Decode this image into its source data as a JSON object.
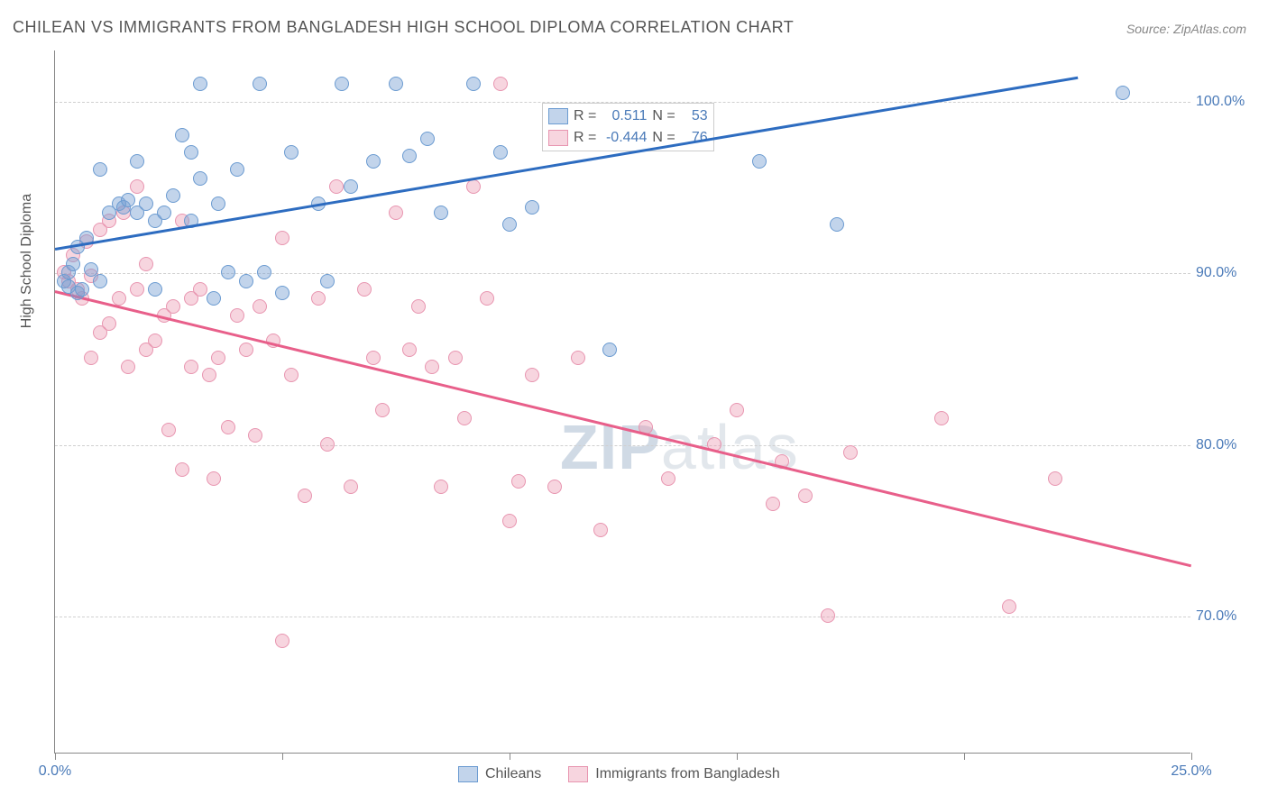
{
  "title": "CHILEAN VS IMMIGRANTS FROM BANGLADESH HIGH SCHOOL DIPLOMA CORRELATION CHART",
  "source": "Source: ZipAtlas.com",
  "y_axis_label": "High School Diploma",
  "watermark": {
    "zip": "ZIP",
    "atlas": "atlas"
  },
  "chart": {
    "type": "scatter",
    "xlim": [
      0,
      25
    ],
    "ylim": [
      62,
      103
    ],
    "x_ticks": [
      0,
      5,
      10,
      15,
      20,
      25
    ],
    "x_tick_labels": {
      "0": "0.0%",
      "25": "25.0%"
    },
    "y_ticks": [
      70,
      80,
      90,
      100
    ],
    "y_tick_labels": [
      "70.0%",
      "80.0%",
      "90.0%",
      "100.0%"
    ],
    "grid_color": "#d0d0d0",
    "background_color": "#ffffff",
    "marker_radius": 8,
    "marker_opacity": 0.55,
    "series": [
      {
        "name": "Chileans",
        "color_fill": "rgba(120,160,210,0.45)",
        "color_stroke": "#6b9bd1",
        "trend_color": "#2d6cc0",
        "trend": {
          "x1": 0,
          "y1": 91.5,
          "x2": 22.5,
          "y2": 101.5
        },
        "stats": {
          "R": "0.511",
          "N": "53"
        },
        "points": [
          [
            0.2,
            89.5
          ],
          [
            0.3,
            90.0
          ],
          [
            0.3,
            89.2
          ],
          [
            0.4,
            90.5
          ],
          [
            0.5,
            91.5
          ],
          [
            0.5,
            88.8
          ],
          [
            0.6,
            89.0
          ],
          [
            0.7,
            92.0
          ],
          [
            0.8,
            90.2
          ],
          [
            1.0,
            96.0
          ],
          [
            1.0,
            89.5
          ],
          [
            1.2,
            93.5
          ],
          [
            1.4,
            94.0
          ],
          [
            1.5,
            93.8
          ],
          [
            1.6,
            94.2
          ],
          [
            1.8,
            96.5
          ],
          [
            1.8,
            93.5
          ],
          [
            2.0,
            94.0
          ],
          [
            2.2,
            93.0
          ],
          [
            2.2,
            89.0
          ],
          [
            2.4,
            93.5
          ],
          [
            2.6,
            94.5
          ],
          [
            2.8,
            98.0
          ],
          [
            3.0,
            93.0
          ],
          [
            3.0,
            97.0
          ],
          [
            3.2,
            95.5
          ],
          [
            3.2,
            101.0
          ],
          [
            3.5,
            88.5
          ],
          [
            3.6,
            94.0
          ],
          [
            3.8,
            90.0
          ],
          [
            4.0,
            96.0
          ],
          [
            4.2,
            89.5
          ],
          [
            4.5,
            101.0
          ],
          [
            4.6,
            90.0
          ],
          [
            5.0,
            88.8
          ],
          [
            5.2,
            97.0
          ],
          [
            5.8,
            94.0
          ],
          [
            6.0,
            89.5
          ],
          [
            6.3,
            101.0
          ],
          [
            6.5,
            95.0
          ],
          [
            7.0,
            96.5
          ],
          [
            7.5,
            101.0
          ],
          [
            7.8,
            96.8
          ],
          [
            8.2,
            97.8
          ],
          [
            8.5,
            93.5
          ],
          [
            9.2,
            101.0
          ],
          [
            9.8,
            97.0
          ],
          [
            10.0,
            92.8
          ],
          [
            10.5,
            93.8
          ],
          [
            12.2,
            85.5
          ],
          [
            15.5,
            96.5
          ],
          [
            17.2,
            92.8
          ],
          [
            23.5,
            100.5
          ]
        ]
      },
      {
        "name": "Immigrants from Bangladesh",
        "color_fill": "rgba(235,150,175,0.40)",
        "color_stroke": "#e895b0",
        "trend_color": "#e85f8a",
        "trend": {
          "x1": 0,
          "y1": 89.0,
          "x2": 25,
          "y2": 73.0
        },
        "stats": {
          "R": "-0.444",
          "N": "76"
        },
        "points": [
          [
            0.2,
            90.0
          ],
          [
            0.3,
            89.5
          ],
          [
            0.4,
            91.0
          ],
          [
            0.5,
            89.0
          ],
          [
            0.6,
            88.5
          ],
          [
            0.7,
            91.8
          ],
          [
            0.8,
            89.8
          ],
          [
            0.8,
            85.0
          ],
          [
            1.0,
            92.5
          ],
          [
            1.0,
            86.5
          ],
          [
            1.2,
            93.0
          ],
          [
            1.2,
            87.0
          ],
          [
            1.4,
            88.5
          ],
          [
            1.5,
            93.5
          ],
          [
            1.6,
            84.5
          ],
          [
            1.8,
            89.0
          ],
          [
            1.8,
            95.0
          ],
          [
            2.0,
            90.5
          ],
          [
            2.0,
            85.5
          ],
          [
            2.2,
            86.0
          ],
          [
            2.4,
            87.5
          ],
          [
            2.5,
            80.8
          ],
          [
            2.6,
            88.0
          ],
          [
            2.8,
            78.5
          ],
          [
            2.8,
            93.0
          ],
          [
            3.0,
            84.5
          ],
          [
            3.0,
            88.5
          ],
          [
            3.2,
            89.0
          ],
          [
            3.4,
            84.0
          ],
          [
            3.5,
            78.0
          ],
          [
            3.6,
            85.0
          ],
          [
            3.8,
            81.0
          ],
          [
            4.0,
            87.5
          ],
          [
            4.2,
            85.5
          ],
          [
            4.4,
            80.5
          ],
          [
            4.5,
            88.0
          ],
          [
            4.8,
            86.0
          ],
          [
            5.0,
            68.5
          ],
          [
            5.0,
            92.0
          ],
          [
            5.2,
            84.0
          ],
          [
            5.5,
            77.0
          ],
          [
            5.8,
            88.5
          ],
          [
            6.0,
            80.0
          ],
          [
            6.2,
            95.0
          ],
          [
            6.5,
            77.5
          ],
          [
            6.8,
            89.0
          ],
          [
            7.0,
            85.0
          ],
          [
            7.2,
            82.0
          ],
          [
            7.5,
            93.5
          ],
          [
            7.8,
            85.5
          ],
          [
            8.0,
            88.0
          ],
          [
            8.3,
            84.5
          ],
          [
            8.5,
            77.5
          ],
          [
            8.8,
            85.0
          ],
          [
            9.0,
            81.5
          ],
          [
            9.2,
            95.0
          ],
          [
            9.5,
            88.5
          ],
          [
            9.8,
            101.0
          ],
          [
            10.0,
            75.5
          ],
          [
            10.2,
            77.8
          ],
          [
            10.5,
            84.0
          ],
          [
            11.0,
            77.5
          ],
          [
            11.5,
            85.0
          ],
          [
            12.0,
            75.0
          ],
          [
            13.0,
            81.0
          ],
          [
            13.5,
            78.0
          ],
          [
            14.5,
            80.0
          ],
          [
            15.0,
            82.0
          ],
          [
            15.8,
            76.5
          ],
          [
            16.0,
            79.0
          ],
          [
            16.5,
            77.0
          ],
          [
            17.0,
            70.0
          ],
          [
            17.5,
            79.5
          ],
          [
            19.5,
            81.5
          ],
          [
            21.0,
            70.5
          ],
          [
            22.0,
            78.0
          ]
        ]
      }
    ]
  },
  "stats_labels": {
    "R": "R =",
    "N": "N ="
  },
  "bottom_legend": [
    {
      "label": "Chileans",
      "fill": "rgba(120,160,210,0.45)",
      "stroke": "#6b9bd1"
    },
    {
      "label": "Immigrants from Bangladesh",
      "fill": "rgba(235,150,175,0.40)",
      "stroke": "#e895b0"
    }
  ]
}
